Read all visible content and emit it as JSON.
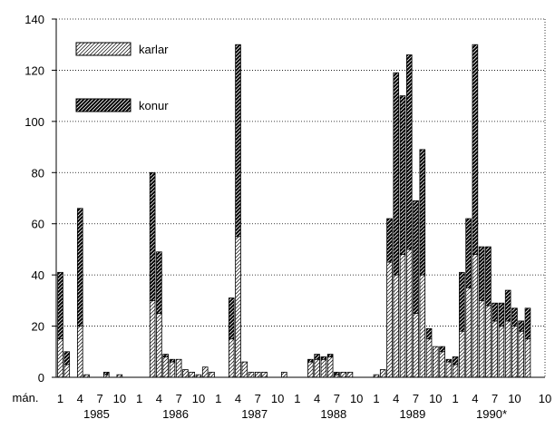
{
  "chart_data": {
    "type": "bar",
    "stacked": true,
    "title": "",
    "xlabel": "mán.",
    "ylabel": "",
    "ylim": [
      0,
      140
    ],
    "yticks": [
      0,
      20,
      40,
      60,
      80,
      100,
      120,
      140
    ],
    "grid": "horizontal-dotted",
    "legend_position": "top-left",
    "month_ticks": [
      "1",
      "4",
      "7",
      "10"
    ],
    "years": [
      "1985",
      "1986",
      "1987",
      "1988",
      "1989",
      "1990*"
    ],
    "months_per_year": 12,
    "last_tick_label": "10",
    "series": [
      {
        "name": "karlar",
        "pattern": "light-hatch",
        "values": [
          15,
          5,
          0,
          20,
          1,
          0,
          0,
          1,
          0,
          1,
          0,
          0,
          0,
          0,
          30,
          25,
          8,
          6,
          7,
          3,
          2,
          1,
          4,
          2,
          0,
          0,
          15,
          55,
          6,
          2,
          2,
          2,
          0,
          0,
          2,
          0,
          0,
          0,
          6,
          7,
          7,
          8,
          1,
          2,
          2,
          0,
          0,
          0,
          1,
          3,
          45,
          40,
          48,
          50,
          25,
          40,
          15,
          12,
          10,
          6,
          5,
          18,
          35,
          48,
          30,
          28,
          22,
          20,
          22,
          20,
          18,
          15
        ]
      },
      {
        "name": "konur",
        "pattern": "dark-hatch",
        "values": [
          26,
          5,
          0,
          46,
          0,
          0,
          0,
          1,
          0,
          0,
          0,
          0,
          0,
          0,
          50,
          24,
          1,
          1,
          0,
          0,
          0,
          0,
          0,
          0,
          0,
          0,
          16,
          75,
          0,
          0,
          0,
          0,
          0,
          0,
          0,
          0,
          0,
          0,
          1,
          2,
          1,
          1,
          1,
          0,
          0,
          0,
          0,
          0,
          0,
          0,
          17,
          79,
          62,
          76,
          44,
          49,
          4,
          0,
          2,
          1,
          3,
          23,
          27,
          82,
          21,
          23,
          7,
          9,
          12,
          7,
          4,
          12
        ]
      }
    ]
  }
}
